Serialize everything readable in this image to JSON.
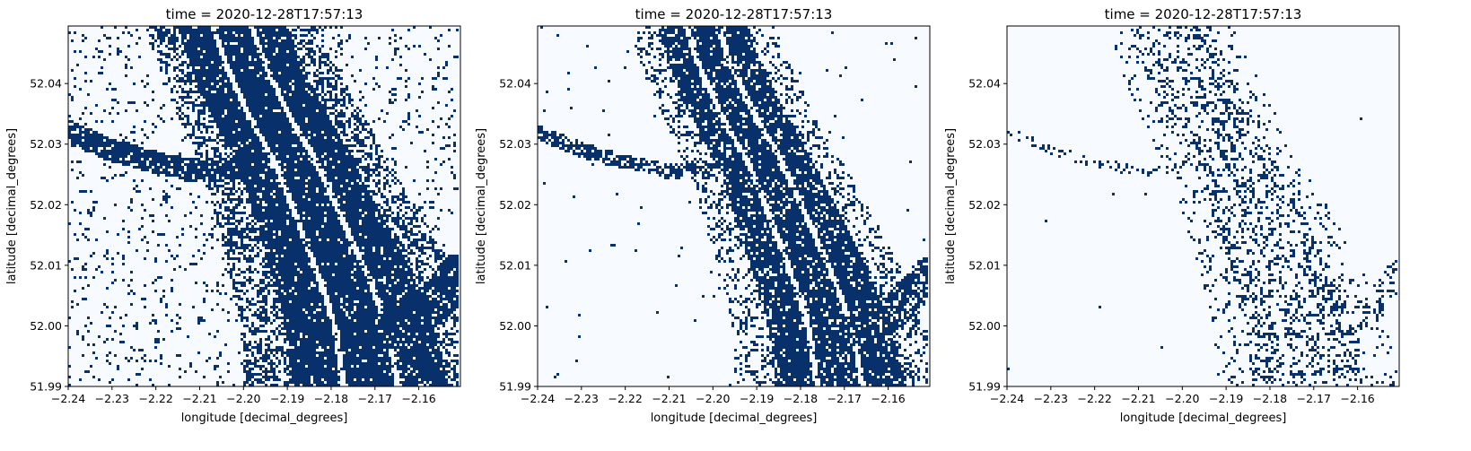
{
  "figure": {
    "colors": {
      "water": "#08306b",
      "background": "#f7fbff",
      "axis": "#000000"
    }
  },
  "chart_data": [
    {
      "type": "heatmap",
      "title": "time = 2020-12-28T17:57:13",
      "xlabel": "longitude [decimal_degrees]",
      "ylabel": "latitude [decimal_degrees]",
      "xlim": [
        -2.24,
        -2.1505
      ],
      "ylim": [
        51.99,
        52.0495
      ],
      "xticks": [
        -2.24,
        -2.23,
        -2.22,
        -2.21,
        -2.2,
        -2.19,
        -2.18,
        -2.17,
        -2.16
      ],
      "xtick_labels": [
        "−2.24",
        "−2.23",
        "−2.22",
        "−2.21",
        "−2.20",
        "−2.19",
        "−2.18",
        "−2.17",
        "−2.16"
      ],
      "yticks": [
        51.99,
        52.0,
        52.01,
        52.02,
        52.03,
        52.04
      ],
      "ytick_labels": [
        "51.99",
        "52.00",
        "52.01",
        "52.02",
        "52.03",
        "52.04"
      ],
      "colormap": "Blues",
      "classes": [
        0,
        1
      ],
      "description_values": {
        "mask_density": "high",
        "background_noise": "heavy"
      }
    },
    {
      "type": "heatmap",
      "title": "time = 2020-12-28T17:57:13",
      "xlabel": "longitude [decimal_degrees]",
      "ylabel": "latitude [decimal_degrees]",
      "xlim": [
        -2.24,
        -2.1505
      ],
      "ylim": [
        51.99,
        52.0495
      ],
      "xticks": [
        -2.24,
        -2.23,
        -2.22,
        -2.21,
        -2.2,
        -2.19,
        -2.18,
        -2.17,
        -2.16
      ],
      "xtick_labels": [
        "−2.24",
        "−2.23",
        "−2.22",
        "−2.21",
        "−2.20",
        "−2.19",
        "−2.18",
        "−2.17",
        "−2.16"
      ],
      "yticks": [
        51.99,
        52.0,
        52.01,
        52.02,
        52.03,
        52.04
      ],
      "ytick_labels": [
        "51.99",
        "52.00",
        "52.01",
        "52.02",
        "52.03",
        "52.04"
      ],
      "colormap": "Blues",
      "classes": [
        0,
        1
      ],
      "description_values": {
        "mask_density": "high",
        "background_noise": "light"
      }
    },
    {
      "type": "heatmap",
      "title": "time = 2020-12-28T17:57:13",
      "xlabel": "longitude [decimal_degrees]",
      "ylabel": "latitude [decimal_degrees]",
      "xlim": [
        -2.24,
        -2.1505
      ],
      "ylim": [
        51.99,
        52.0495
      ],
      "xticks": [
        -2.24,
        -2.23,
        -2.22,
        -2.21,
        -2.2,
        -2.19,
        -2.18,
        -2.17,
        -2.16
      ],
      "xtick_labels": [
        "−2.24",
        "−2.23",
        "−2.22",
        "−2.21",
        "−2.20",
        "−2.19",
        "−2.18",
        "−2.17",
        "−2.16"
      ],
      "yticks": [
        51.99,
        52.0,
        52.01,
        52.02,
        52.03,
        52.04
      ],
      "ytick_labels": [
        "51.99",
        "52.00",
        "52.01",
        "52.02",
        "52.03",
        "52.04"
      ],
      "colormap": "Blues",
      "classes": [
        0,
        1
      ],
      "description_values": {
        "mask_density": "sparse",
        "background_noise": "none"
      }
    }
  ]
}
